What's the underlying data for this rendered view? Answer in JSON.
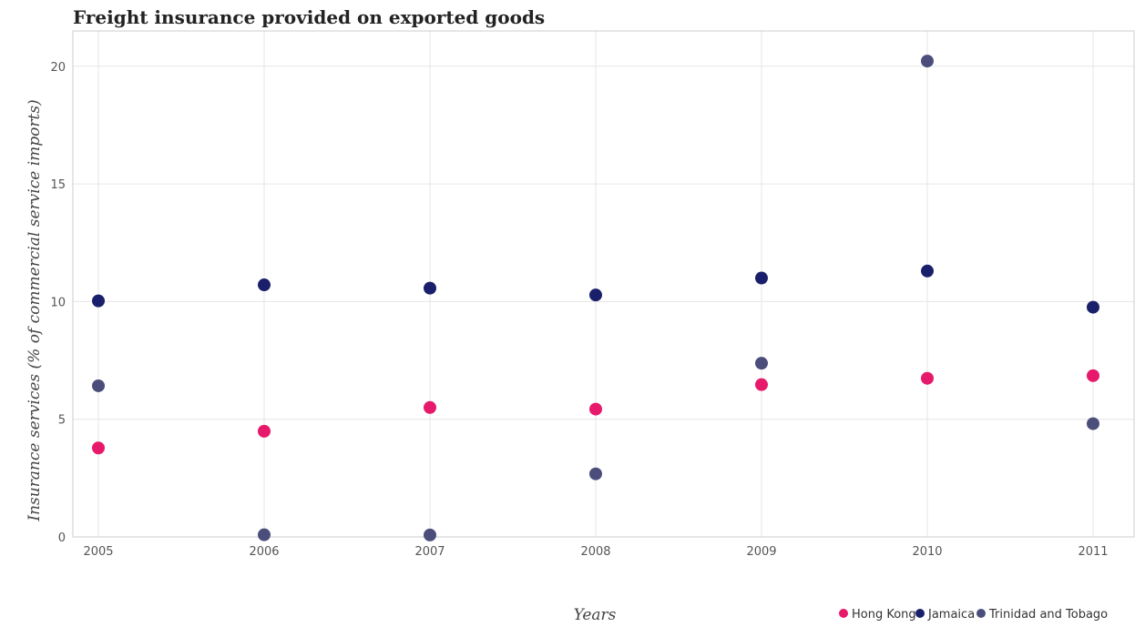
{
  "chart_data": {
    "type": "scatter",
    "title": "Freight insurance provided on exported goods",
    "xlabel": "Years",
    "ylabel": "Insurance services (% of commercial service imports)",
    "categories": [
      "2005",
      "2006",
      "2007",
      "2008",
      "2009",
      "2010",
      "2011"
    ],
    "yticks": [
      "0",
      "5",
      "10",
      "15",
      "20"
    ],
    "ylim": [
      0,
      21.5
    ],
    "grid": true,
    "legend_position": "bottom-right",
    "series": [
      {
        "name": "Hong Kong",
        "color": "#e6196b",
        "values": [
          3.78,
          4.49,
          5.5,
          5.43,
          6.47,
          6.74,
          6.85
        ]
      },
      {
        "name": "Jamaica",
        "color": "#1a1f6b",
        "values": [
          10.03,
          10.71,
          10.57,
          10.28,
          11.0,
          11.3,
          9.76
        ]
      },
      {
        "name": "Trinidad and Tobago",
        "color": "#4b4e7a",
        "values": [
          6.42,
          0.09,
          0.08,
          2.68,
          7.38,
          20.22,
          4.81
        ]
      }
    ]
  }
}
